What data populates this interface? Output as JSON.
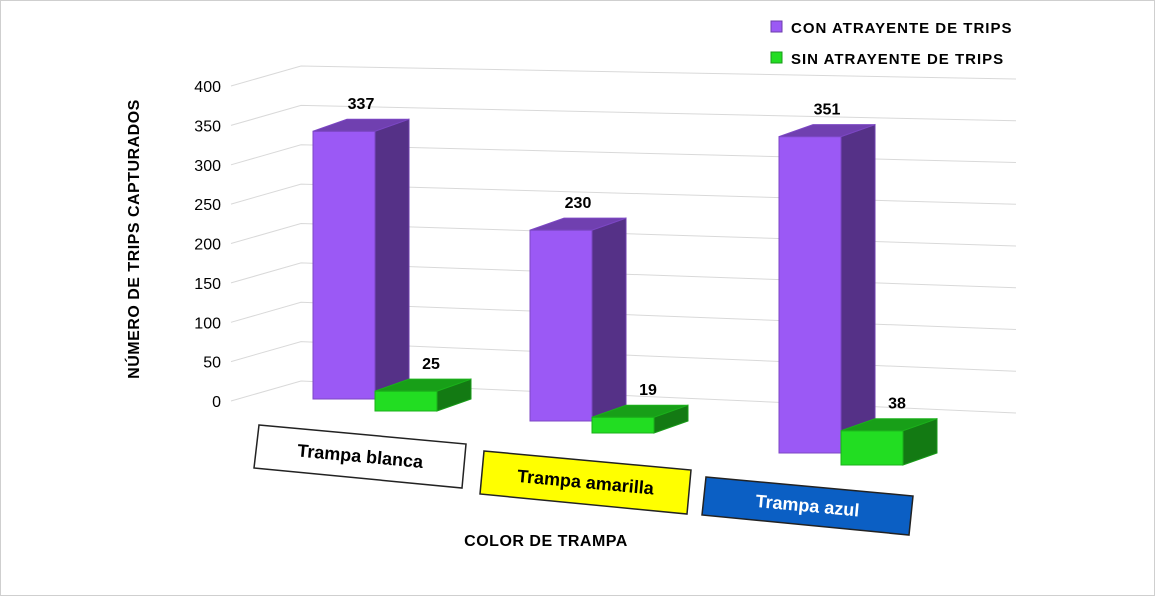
{
  "chart_data": {
    "type": "bar",
    "categories": [
      "Trampa blanca",
      "Trampa amarilla",
      "Trampa azul"
    ],
    "category_fills": [
      "#ffffff",
      "#ffff00",
      "#0b5fc4"
    ],
    "category_text_colors": [
      "#000000",
      "#000000",
      "#ffffff"
    ],
    "series": [
      {
        "name": "CON ATRAYENTE DE TRIPS",
        "values": [
          337,
          230,
          351
        ],
        "color": "#9b59f5"
      },
      {
        "name": "SIN ATRAYENTE DE TRIPS",
        "values": [
          25,
          19,
          38
        ],
        "color": "#22dd22"
      }
    ],
    "yticks": [
      0,
      50,
      100,
      150,
      200,
      250,
      300,
      350,
      400
    ],
    "ylim": [
      0,
      400
    ],
    "xlabel": "COLOR DE TRAMPA",
    "ylabel": "NÚMERO DE TRIPS CAPTURADOS",
    "legend_position": "top-right",
    "grid": true,
    "style": "3d-clustered-column"
  }
}
